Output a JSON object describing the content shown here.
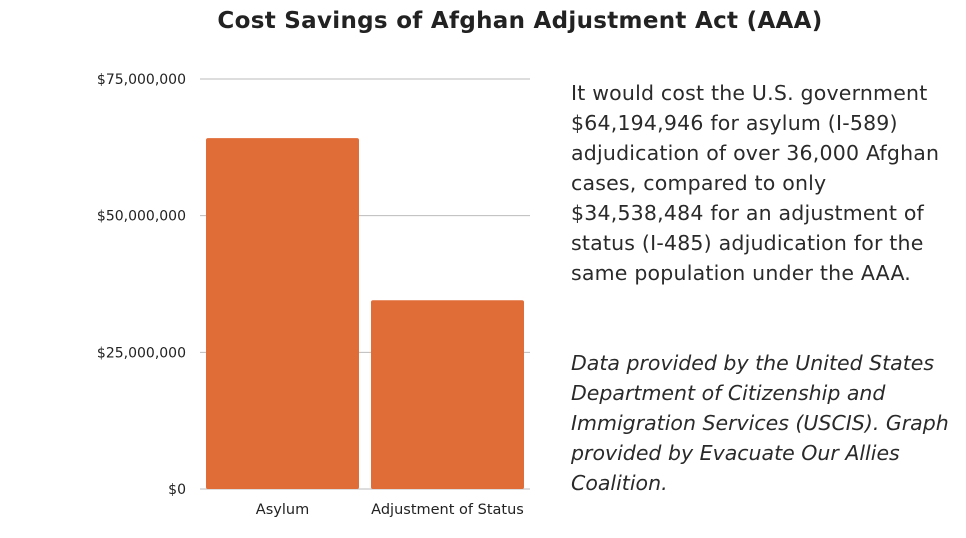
{
  "title": "Cost Savings of Afghan Adjustment Act (AAA)",
  "description": "It would cost the U.S. government $64,194,946 for asylum (I-589) adjudication of over 36,000 Afghan cases, compared to only $34,538,484 for an adjustment of status (I-485) adjudication for the same population under the AAA.",
  "credit": "Data provided by the United States Department of Citizenship and Immigration Services (USCIS). Graph provided by Evacuate Our Allies Coalition.",
  "colors": {
    "bar": "#E06C37",
    "grid": "#BBBBBB"
  },
  "chart_data": {
    "type": "bar",
    "title": "Cost Savings of Afghan Adjustment Act (AAA)",
    "categories": [
      "Asylum",
      "Adjustment of Status"
    ],
    "values": [
      64194946,
      34538484
    ],
    "xlabel": "",
    "ylabel": "",
    "ylim": [
      0,
      75000000
    ],
    "yticks": [
      0,
      25000000,
      50000000,
      75000000
    ],
    "ytick_labels": [
      "$0",
      "$25,000,000",
      "$50,000,000",
      "$75,000,000"
    ],
    "grid": true,
    "legend": "none"
  }
}
